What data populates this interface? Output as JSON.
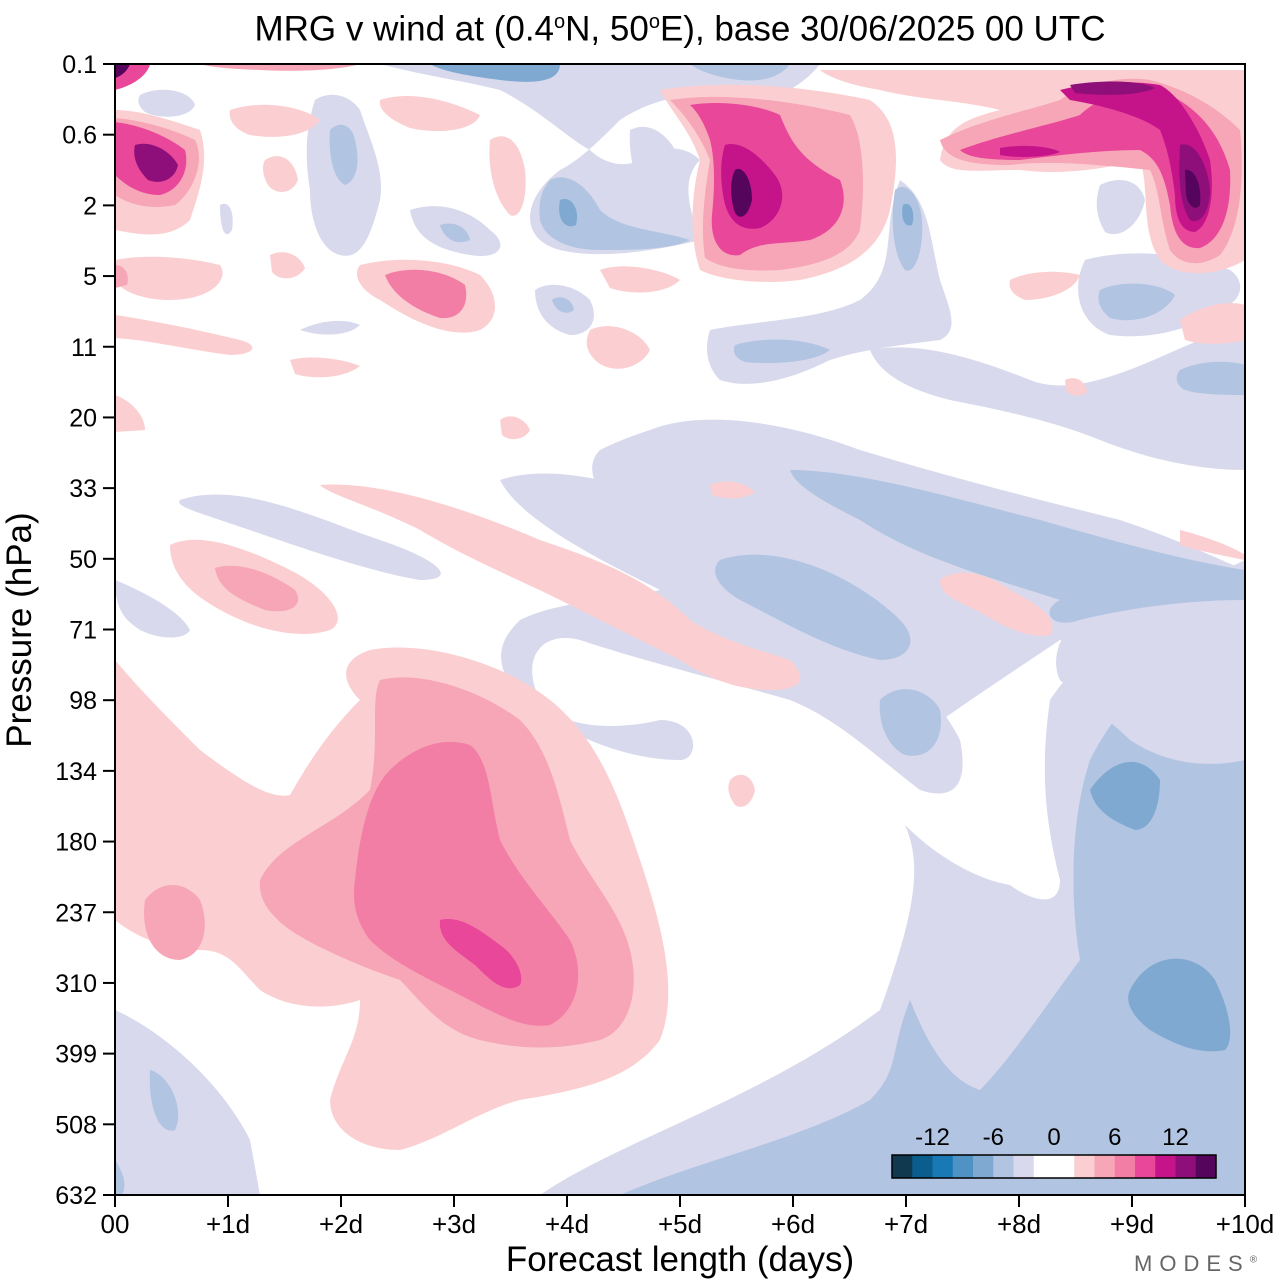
{
  "chart_data": {
    "type": "heatmap",
    "title": "MRG v wind at (0.4°N, 50°E),  base 30/06/2025  00 UTC",
    "title_parts": {
      "prefix": "MRG v wind at (0.4",
      "deg1": "o",
      "mid": "N, 50",
      "deg2": "o",
      "suffix": "E),  base 30/06/2025  00 UTC"
    },
    "xlabel": "Forecast length (days)",
    "ylabel": "Pressure (hPa)",
    "x_ticks": [
      "00",
      "+1d",
      "+2d",
      "+3d",
      "+4d",
      "+5d",
      "+6d",
      "+7d",
      "+8d",
      "+9d",
      "+10d"
    ],
    "x_range": [
      0,
      10
    ],
    "y_ticks": [
      "0.1",
      "0.6",
      "2",
      "5",
      "11",
      "20",
      "33",
      "50",
      "71",
      "98",
      "134",
      "180",
      "237",
      "310",
      "399",
      "508",
      "632"
    ],
    "colorbar": {
      "tick_labels": [
        "-12",
        "-6",
        "0",
        "6",
        "12"
      ],
      "colors": [
        "#10384e",
        "#0a5d8c",
        "#1979b5",
        "#4f92c4",
        "#7fa9d1",
        "#b1c4e2",
        "#d8d9ec",
        "#ffffff",
        "#ffffff",
        "#fbcfd1",
        "#f6a6b6",
        "#f27ea5",
        "#e8479a",
        "#c5148a",
        "#8e0f7a",
        "#56055c"
      ]
    },
    "features": [
      {
        "name": "upper-trop-max",
        "sign": "positive",
        "x_days": [
          2.2,
          4.2
        ],
        "pressure_hPa": [
          100,
          420
        ],
        "peak": 10
      },
      {
        "name": "lower-strat-neg",
        "sign": "negative",
        "x_days": [
          4.5,
          10
        ],
        "pressure_hPa": [
          35,
          100
        ],
        "peak": -4
      },
      {
        "name": "upper-strat-pos-1",
        "sign": "positive",
        "x_days": [
          5.2,
          6.6
        ],
        "pressure_hPa": [
          0.2,
          5
        ],
        "peak": 14
      },
      {
        "name": "upper-strat-pos-2",
        "sign": "positive",
        "x_days": [
          8.7,
          10
        ],
        "pressure_hPa": [
          0.1,
          5
        ],
        "peak": 16
      },
      {
        "name": "near-top-pos-day0",
        "sign": "positive",
        "x_days": [
          0,
          0.8
        ],
        "pressure_hPa": [
          0.4,
          2
        ],
        "peak": 13
      },
      {
        "name": "lower-trop-neg",
        "sign": "negative",
        "x_days": [
          7,
          10
        ],
        "pressure_hPa": [
          130,
          632
        ],
        "peak": -7
      }
    ]
  },
  "branding": {
    "logo": "MODES",
    "logo_mark": "®"
  }
}
